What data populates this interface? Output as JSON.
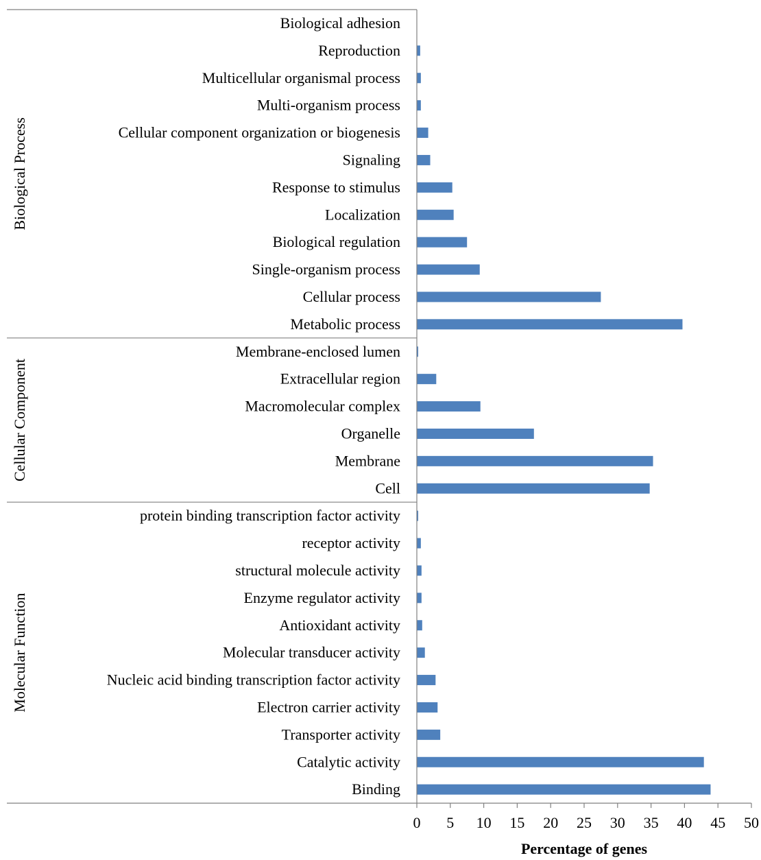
{
  "chart_data": {
    "type": "bar",
    "orientation": "horizontal",
    "xlabel": "Percentage of genes",
    "xlim": [
      0,
      50
    ],
    "xticks": [
      0,
      5,
      10,
      15,
      20,
      25,
      30,
      35,
      40,
      45,
      50
    ],
    "grid": false,
    "colors": {
      "bar": "#4f81bd",
      "axis": "#808080"
    },
    "groups": [
      {
        "name": "Biological Process",
        "categories": [
          "Biological adhesion",
          "Reproduction",
          "Multicellular organismal process",
          "Multi-organism process",
          "Cellular component organization or biogenesis",
          "Signaling",
          "Response to stimulus",
          "Localization",
          "Biological regulation",
          "Single-organism process",
          "Cellular process",
          "Metabolic process"
        ],
        "values": [
          0,
          0.5,
          0.6,
          0.6,
          1.7,
          2.0,
          5.3,
          5.5,
          7.5,
          9.4,
          27.5,
          39.7
        ]
      },
      {
        "name": "Cellular Component",
        "categories": [
          "Membrane-enclosed lumen",
          "Extracellular region",
          "Macromolecular complex",
          "Organelle",
          "Membrane",
          "Cell"
        ],
        "values": [
          0.2,
          2.9,
          9.5,
          17.5,
          35.3,
          34.8
        ]
      },
      {
        "name": "Molecular Function",
        "categories": [
          "protein binding transcription factor activity",
          "receptor activity",
          "structural molecule activity",
          "Enzyme regulator activity",
          "Antioxidant activity",
          "Molecular transducer activity",
          "Nucleic acid binding transcription factor activity",
          "Electron carrier activity",
          "Transporter activity",
          "Catalytic activity",
          "Binding"
        ],
        "values": [
          0.2,
          0.6,
          0.7,
          0.7,
          0.8,
          1.2,
          2.8,
          3.1,
          3.5,
          42.9,
          43.9
        ]
      }
    ]
  }
}
